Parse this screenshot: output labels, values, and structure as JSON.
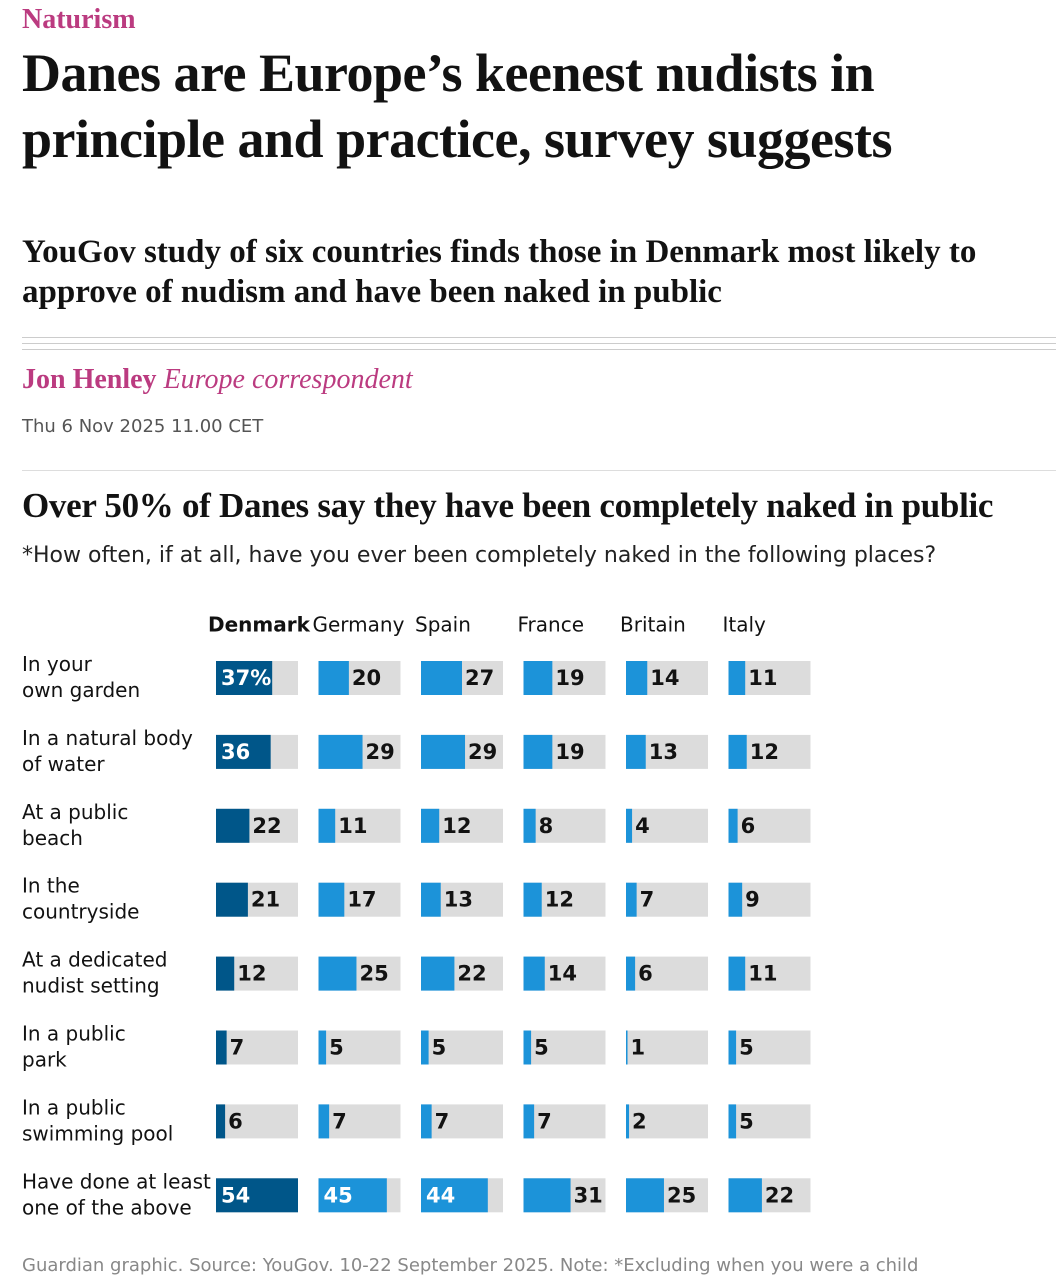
{
  "header": {
    "section": "Naturism",
    "title": "Danes are Europe’s keenest nudists in principle and practice, survey suggests",
    "standfirst": "YouGov study of six countries finds those in Denmark most likely to approve of nudism and have been naked in public",
    "author": "Jon Henley",
    "author_role": "Europe correspondent",
    "date": "Thu 6 Nov 2025 11.00 CET"
  },
  "chart_data": {
    "type": "bar",
    "title": "Over 50% of Danes say they have been completely naked in public",
    "subtitle": "*How often, if at all, have you ever been completely naked in the following places?",
    "categories": [
      "In your\nown garden",
      "In a natural body\nof water",
      "At a public\nbeach",
      "In the\ncountryside",
      "At a dedicated\nnudist setting",
      "In a public\npark",
      "In a public\nswimming pool",
      "Have done at least\none of the above"
    ],
    "series": [
      {
        "name": "Denmark",
        "color": "#005689",
        "values": [
          37,
          36,
          22,
          21,
          12,
          7,
          6,
          54
        ],
        "value_labels": [
          "37%",
          "36",
          "22",
          "21",
          "12",
          "7",
          "6",
          "54"
        ]
      },
      {
        "name": "Germany",
        "color": "#1c93d9",
        "values": [
          20,
          29,
          11,
          17,
          25,
          5,
          7,
          45
        ]
      },
      {
        "name": "Spain",
        "color": "#1c93d9",
        "values": [
          27,
          29,
          12,
          13,
          22,
          5,
          7,
          44
        ]
      },
      {
        "name": "France",
        "color": "#1c93d9",
        "values": [
          19,
          19,
          8,
          12,
          14,
          5,
          7,
          31
        ]
      },
      {
        "name": "Britain",
        "color": "#1c93d9",
        "values": [
          14,
          13,
          4,
          7,
          6,
          1,
          2,
          25
        ]
      },
      {
        "name": "Italy",
        "color": "#1c93d9",
        "values": [
          11,
          12,
          6,
          9,
          11,
          5,
          5,
          22
        ]
      }
    ],
    "xlim": [
      0,
      54
    ],
    "track_color": "#dcdcdc",
    "source": "Guardian graphic. Source: YouGov. 10-22 September 2025. Note: *Excluding when you were a child"
  }
}
